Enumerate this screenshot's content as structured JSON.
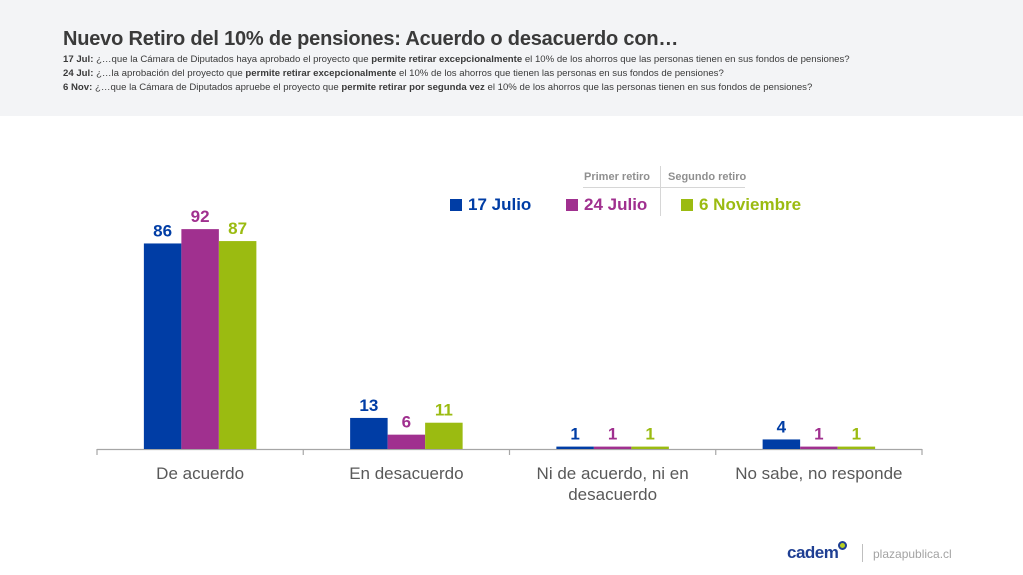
{
  "header": {
    "title": "Nuevo Retiro del 10% de pensiones: Acuerdo o desacuerdo con…",
    "questions": [
      {
        "tag": "17 Jul:",
        "pre": " ¿…que la Cámara de Diputados haya aprobado el proyecto que ",
        "bold": "permite retirar excepcionalmente",
        "post": " el 10% de los ahorros que las personas tienen en sus fondos de pensiones?"
      },
      {
        "tag": "24 Jul:",
        "pre": " ¿…la aprobación del proyecto que ",
        "bold": "permite retirar excepcionalmente",
        "post": " el 10% de los ahorros que tienen las personas en sus fondos de pensiones?"
      },
      {
        "tag": "6 Nov:",
        "pre": " ¿…que la Cámara de Diputados apruebe el proyecto que ",
        "bold": "permite retirar por segunda vez",
        "post": " el 10% de los ahorros que las personas tienen en sus fondos de pensiones?"
      }
    ]
  },
  "legend": {
    "group_labels": {
      "first": "Primer retiro",
      "second": "Segundo retiro"
    }
  },
  "chart_data": {
    "type": "bar",
    "title": "Nuevo Retiro del 10% de pensiones: Acuerdo o desacuerdo con…",
    "xlabel": "",
    "ylabel": "",
    "ylim": [
      0,
      100
    ],
    "grid": false,
    "legend_position": "top-right",
    "categories": [
      "De acuerdo",
      "En desacuerdo",
      "Ni de acuerdo, ni en desacuerdo",
      "No sabe, no responde"
    ],
    "category_lines": [
      [
        "De acuerdo"
      ],
      [
        "En desacuerdo"
      ],
      [
        "Ni de acuerdo, ni en",
        "desacuerdo"
      ],
      [
        "No sabe, no responde"
      ]
    ],
    "series": [
      {
        "name": "17 Julio",
        "color": "#003da5",
        "values": [
          86,
          13,
          1,
          4
        ]
      },
      {
        "name": "24 Julio",
        "color": "#a0308f",
        "values": [
          92,
          6,
          1,
          1
        ]
      },
      {
        "name": "6 Noviembre",
        "color": "#9bbb11",
        "values": [
          87,
          11,
          1,
          1
        ]
      }
    ]
  },
  "footer": {
    "brand": "cadem",
    "site": "plazapublica.cl",
    "brand_color": "#1f3f93"
  }
}
